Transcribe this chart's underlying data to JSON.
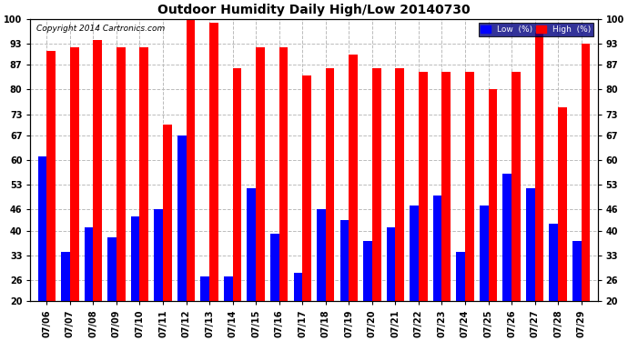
{
  "title": "Outdoor Humidity Daily High/Low 20140730",
  "copyright": "Copyright 2014 Cartronics.com",
  "ylim": [
    20,
    100
  ],
  "yticks": [
    20,
    26,
    33,
    40,
    46,
    53,
    60,
    67,
    73,
    80,
    87,
    93,
    100
  ],
  "background_color": "#ffffff",
  "grid_color": "#bbbbbb",
  "bar_color_high": "#ff0000",
  "bar_color_low": "#0000ff",
  "legend_low_label": "Low  (%)",
  "legend_high_label": "High  (%)",
  "dates": [
    "07/06",
    "07/07",
    "07/08",
    "07/09",
    "07/10",
    "07/11",
    "07/12",
    "07/13",
    "07/14",
    "07/15",
    "07/16",
    "07/17",
    "07/18",
    "07/19",
    "07/20",
    "07/21",
    "07/22",
    "07/23",
    "07/24",
    "07/25",
    "07/26",
    "07/27",
    "07/28",
    "07/29"
  ],
  "high": [
    91,
    92,
    94,
    92,
    92,
    70,
    100,
    99,
    86,
    92,
    92,
    84,
    86,
    90,
    86,
    86,
    85,
    85,
    85,
    80,
    85,
    96,
    75,
    93
  ],
  "low": [
    61,
    34,
    41,
    38,
    44,
    46,
    67,
    27,
    27,
    52,
    39,
    28,
    46,
    43,
    37,
    41,
    47,
    50,
    34,
    47,
    56,
    52,
    42,
    37
  ]
}
